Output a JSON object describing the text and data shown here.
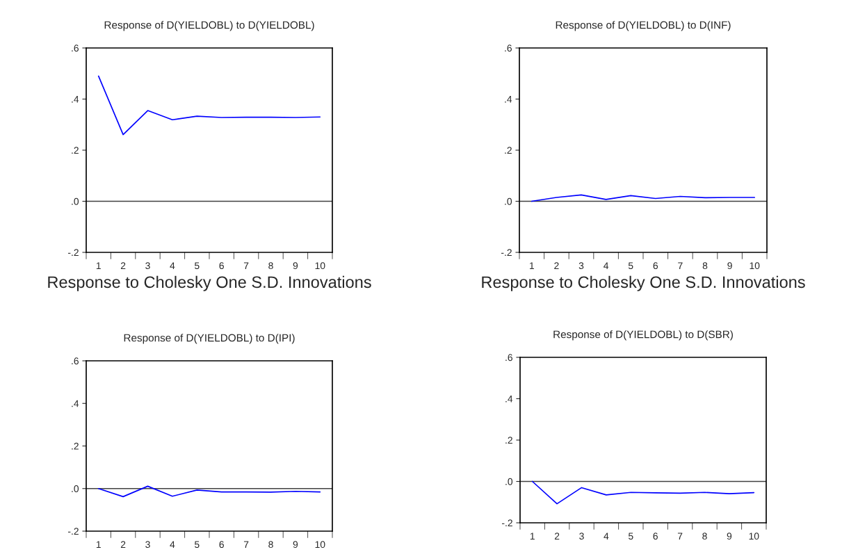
{
  "chart_data": [
    {
      "type": "line",
      "title": "Response of D(YIELDOBL) to D(YIELDOBL)",
      "categories": [
        "1",
        "2",
        "3",
        "4",
        "5",
        "6",
        "7",
        "8",
        "9",
        "10"
      ],
      "series": [
        {
          "color": "#0000ff",
          "values": [
            0.49,
            0.261,
            0.355,
            0.319,
            0.333,
            0.328,
            0.329,
            0.329,
            0.328,
            0.33
          ]
        }
      ],
      "ylim": [
        -0.2,
        0.6
      ],
      "yticks": [
        {
          "value": -0.2,
          "label": "-.2"
        },
        {
          "value": 0,
          "label": ".0"
        },
        {
          "value": 0.2,
          "label": ".2"
        },
        {
          "value": 0.4,
          "label": ".4"
        },
        {
          "value": 0.6,
          "label": ".6"
        }
      ],
      "ref_lines": [
        {
          "axis": "y",
          "value": 0,
          "color": "#404040"
        }
      ],
      "annotations": [
        "Response to Cholesky One S.D. Innovations"
      ]
    },
    {
      "type": "line",
      "title": "Response of D(YIELDOBL) to D(INF)",
      "categories": [
        "1",
        "2",
        "3",
        "4",
        "5",
        "6",
        "7",
        "8",
        "9",
        "10"
      ],
      "series": [
        {
          "color": "#0000ff",
          "values": [
            0.0,
            0.015,
            0.025,
            0.007,
            0.022,
            0.011,
            0.019,
            0.014,
            0.015,
            0.015
          ]
        }
      ],
      "ylim": [
        -0.2,
        0.6
      ],
      "yticks": [
        {
          "value": -0.2,
          "label": "-.2"
        },
        {
          "value": 0,
          "label": ".0"
        },
        {
          "value": 0.2,
          "label": ".2"
        },
        {
          "value": 0.4,
          "label": ".4"
        },
        {
          "value": 0.6,
          "label": ".6"
        }
      ],
      "ref_lines": [
        {
          "axis": "y",
          "value": 0,
          "color": "#404040"
        }
      ],
      "annotations": [
        "Response to Cholesky One S.D. Innovations"
      ]
    },
    {
      "type": "line",
      "title": "Response of D(YIELDOBL) to D(IPI)",
      "categories": [
        "1",
        "2",
        "3",
        "4",
        "5",
        "6",
        "7",
        "8",
        "9",
        "10"
      ],
      "series": [
        {
          "color": "#0000ff",
          "values": [
            0.0,
            -0.038,
            0.011,
            -0.036,
            -0.007,
            -0.016,
            -0.016,
            -0.017,
            -0.013,
            -0.016
          ]
        }
      ],
      "ylim": [
        -0.2,
        0.6
      ],
      "yticks": [
        {
          "value": -0.2,
          "label": "-.2"
        },
        {
          "value": 0,
          "label": ".0"
        },
        {
          "value": 0.2,
          "label": ".2"
        },
        {
          "value": 0.4,
          "label": ".4"
        },
        {
          "value": 0.6,
          "label": ".6"
        }
      ],
      "ref_lines": [
        {
          "axis": "y",
          "value": 0,
          "color": "#404040"
        }
      ]
    },
    {
      "type": "line",
      "title": "Response of D(YIELDOBL) to D(SBR)",
      "categories": [
        "1",
        "2",
        "3",
        "4",
        "5",
        "6",
        "7",
        "8",
        "9",
        "10"
      ],
      "series": [
        {
          "color": "#0000ff",
          "values": [
            0.0,
            -0.108,
            -0.03,
            -0.065,
            -0.053,
            -0.055,
            -0.057,
            -0.053,
            -0.059,
            -0.054
          ]
        }
      ],
      "ylim": [
        -0.2,
        0.6
      ],
      "yticks": [
        {
          "value": -0.2,
          "label": "-.2"
        },
        {
          "value": 0,
          "label": ".0"
        },
        {
          "value": 0.2,
          "label": ".2"
        },
        {
          "value": 0.4,
          "label": ".4"
        },
        {
          "value": 0.6,
          "label": ".6"
        }
      ],
      "ref_lines": [
        {
          "axis": "y",
          "value": 0,
          "color": "#404040"
        }
      ]
    }
  ]
}
